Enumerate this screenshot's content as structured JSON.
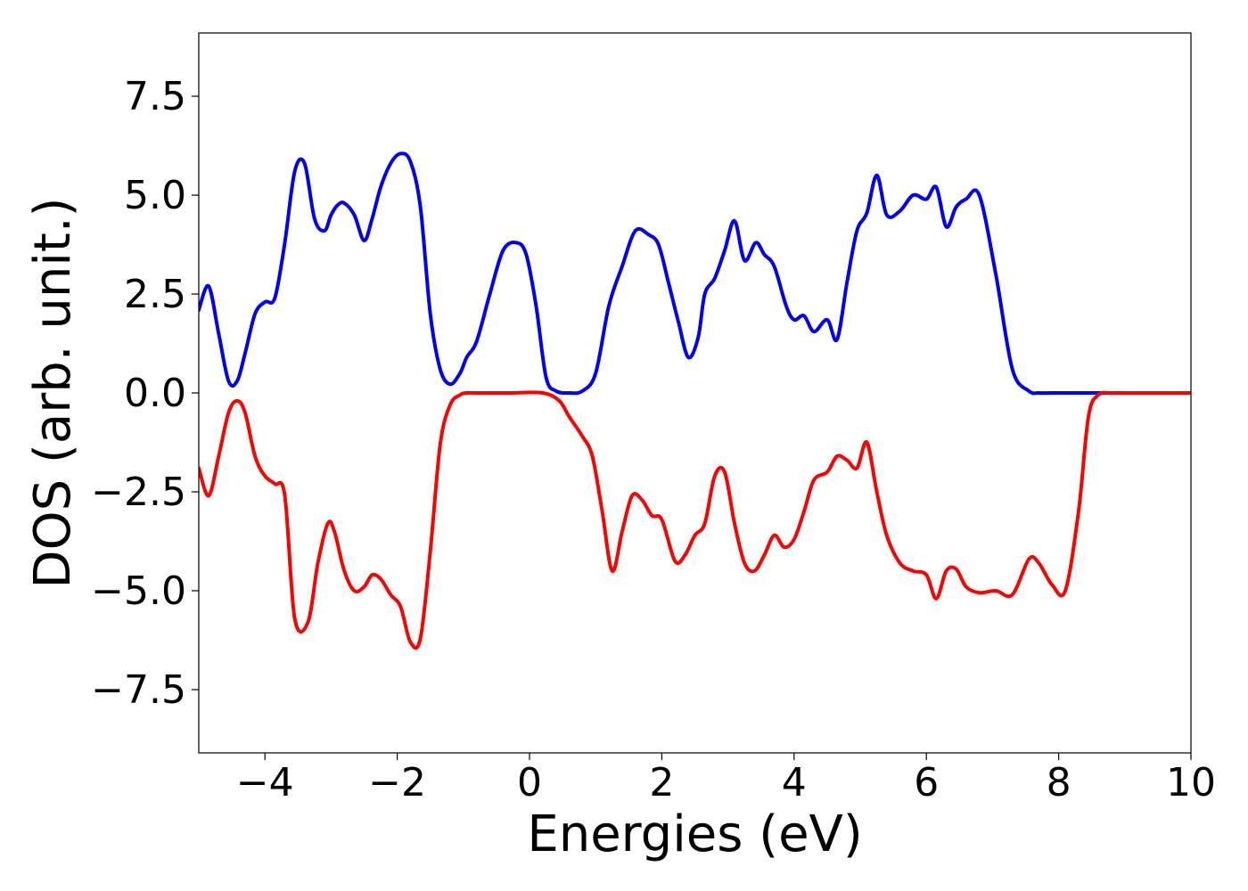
{
  "chart_data": {
    "type": "line",
    "title": "",
    "xlabel": "Energies (eV)",
    "ylabel": "DOS (arb. unit.)",
    "xlim": [
      -5,
      10
    ],
    "ylim": [
      -9.1,
      9.1
    ],
    "grid": false,
    "legend": "none",
    "x_ticks": [
      {
        "value": -4,
        "label": "−4"
      },
      {
        "value": -2,
        "label": "−2"
      },
      {
        "value": 0,
        "label": "0"
      },
      {
        "value": 2,
        "label": "2"
      },
      {
        "value": 4,
        "label": "4"
      },
      {
        "value": 6,
        "label": "6"
      },
      {
        "value": 8,
        "label": "8"
      },
      {
        "value": 10,
        "label": "10"
      }
    ],
    "y_ticks": [
      {
        "value": -7.5,
        "label": "−7.5"
      },
      {
        "value": -5.0,
        "label": "−5.0"
      },
      {
        "value": -2.5,
        "label": "−2.5"
      },
      {
        "value": 0.0,
        "label": "0.0"
      },
      {
        "value": 2.5,
        "label": "2.5"
      },
      {
        "value": 5.0,
        "label": "5.0"
      },
      {
        "value": 7.5,
        "label": "7.5"
      }
    ],
    "series": [
      {
        "color": "#0000ff",
        "x": [
          -5.0,
          -4.85,
          -4.7,
          -4.55,
          -4.42,
          -4.3,
          -4.15,
          -4.0,
          -3.85,
          -3.7,
          -3.55,
          -3.4,
          -3.25,
          -3.1,
          -3.0,
          -2.9,
          -2.8,
          -2.65,
          -2.5,
          -2.38,
          -2.25,
          -2.1,
          -1.95,
          -1.8,
          -1.65,
          -1.5,
          -1.35,
          -1.2,
          -1.05,
          -0.95,
          -0.8,
          -0.6,
          -0.4,
          -0.2,
          -0.05,
          0.1,
          0.25,
          0.4,
          0.6,
          0.8,
          1.0,
          1.2,
          1.4,
          1.6,
          1.8,
          1.95,
          2.1,
          2.25,
          2.4,
          2.55,
          2.65,
          2.8,
          2.95,
          3.1,
          3.25,
          3.42,
          3.55,
          3.7,
          3.88,
          4.0,
          4.15,
          4.3,
          4.5,
          4.65,
          4.8,
          4.95,
          5.1,
          5.25,
          5.4,
          5.6,
          5.8,
          6.0,
          6.15,
          6.3,
          6.45,
          6.6,
          6.8,
          7.05,
          7.3,
          7.55,
          7.7,
          7.9,
          8.1,
          8.3,
          8.45,
          8.6,
          8.8,
          9.0,
          9.2,
          9.5,
          10.0
        ],
        "y": [
          2.1,
          2.7,
          1.5,
          0.3,
          0.3,
          1.0,
          2.0,
          2.3,
          2.4,
          3.8,
          5.6,
          5.8,
          4.4,
          4.1,
          4.5,
          4.75,
          4.8,
          4.5,
          3.85,
          4.4,
          5.2,
          5.8,
          6.05,
          5.85,
          4.7,
          2.0,
          0.6,
          0.22,
          0.5,
          0.9,
          1.3,
          2.5,
          3.6,
          3.8,
          3.5,
          2.2,
          0.4,
          0.05,
          0.0,
          0.05,
          0.5,
          2.2,
          3.2,
          4.1,
          4.0,
          3.75,
          2.8,
          1.8,
          0.9,
          1.4,
          2.5,
          2.9,
          3.6,
          4.35,
          3.35,
          3.8,
          3.5,
          3.2,
          2.2,
          1.85,
          1.95,
          1.55,
          1.85,
          1.35,
          2.8,
          4.1,
          4.55,
          5.5,
          4.5,
          4.6,
          5.0,
          4.9,
          5.2,
          4.2,
          4.7,
          4.9,
          5.0,
          3.0,
          0.6,
          0.05,
          0.0,
          0.0,
          0.0,
          0.0,
          0.0,
          0.0,
          0.0,
          0.0,
          0.0,
          0.0,
          0.0
        ]
      },
      {
        "color": "#ff0000",
        "x": [
          -5.0,
          -4.85,
          -4.7,
          -4.55,
          -4.42,
          -4.3,
          -4.15,
          -4.0,
          -3.85,
          -3.7,
          -3.55,
          -3.35,
          -3.2,
          -3.05,
          -2.95,
          -2.8,
          -2.65,
          -2.5,
          -2.38,
          -2.25,
          -2.1,
          -1.95,
          -1.8,
          -1.65,
          -1.5,
          -1.35,
          -1.2,
          -1.05,
          -0.95,
          -0.8,
          -0.6,
          -0.3,
          0.2,
          0.45,
          0.6,
          0.8,
          0.95,
          1.1,
          1.25,
          1.4,
          1.55,
          1.7,
          1.85,
          2.0,
          2.2,
          2.35,
          2.5,
          2.65,
          2.8,
          2.95,
          3.1,
          3.25,
          3.4,
          3.55,
          3.7,
          3.85,
          4.0,
          4.15,
          4.3,
          4.5,
          4.65,
          4.8,
          4.95,
          5.1,
          5.25,
          5.4,
          5.6,
          5.8,
          6.0,
          6.15,
          6.3,
          6.45,
          6.6,
          6.8,
          7.05,
          7.3,
          7.55,
          7.7,
          7.9,
          8.1,
          8.3,
          8.45,
          8.6,
          8.8,
          9.0,
          9.2,
          9.5,
          10.0
        ],
        "y": [
          -1.9,
          -2.6,
          -1.6,
          -0.5,
          -0.2,
          -0.5,
          -1.6,
          -2.1,
          -2.3,
          -2.6,
          -5.7,
          -5.8,
          -4.3,
          -3.3,
          -3.5,
          -4.5,
          -5.0,
          -4.9,
          -4.6,
          -4.7,
          -5.1,
          -5.4,
          -6.3,
          -6.2,
          -4.0,
          -1.3,
          -0.3,
          -0.05,
          0.0,
          0.0,
          0.0,
          0.0,
          0.0,
          -0.2,
          -0.6,
          -1.1,
          -1.6,
          -3.0,
          -4.5,
          -3.5,
          -2.6,
          -2.7,
          -3.1,
          -3.2,
          -4.25,
          -4.1,
          -3.6,
          -3.3,
          -2.1,
          -2.0,
          -3.3,
          -4.3,
          -4.5,
          -4.1,
          -3.6,
          -3.9,
          -3.7,
          -3.0,
          -2.2,
          -2.0,
          -1.6,
          -1.7,
          -1.9,
          -1.25,
          -2.5,
          -3.6,
          -4.3,
          -4.5,
          -4.6,
          -5.2,
          -4.5,
          -4.45,
          -4.9,
          -5.05,
          -5.0,
          -5.1,
          -4.2,
          -4.3,
          -4.85,
          -5.0,
          -3.0,
          -0.6,
          -0.05,
          0.0,
          0.0,
          0.0,
          0.0,
          0.0
        ]
      }
    ]
  }
}
